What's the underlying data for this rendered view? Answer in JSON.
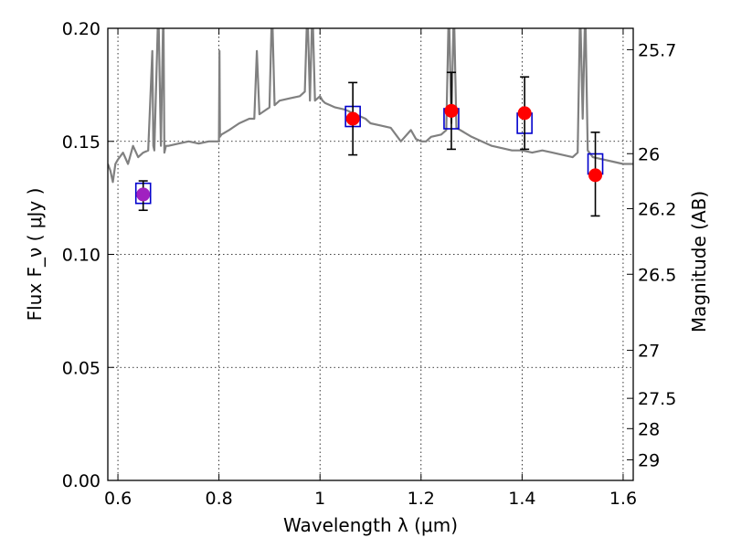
{
  "chart_data": {
    "type": "scatter",
    "xlabel": "Wavelength  λ (μm)",
    "ylabel": "Flux  F_ν  ( μJy )",
    "y2label": "Magnitude (AB)",
    "xlim": [
      0.58,
      1.62
    ],
    "ylim": [
      0.0,
      0.2
    ],
    "x_ticks": [
      0.6,
      0.8,
      1.0,
      1.2,
      1.4,
      1.6
    ],
    "x_tick_labels": [
      "0.6",
      "0.8",
      "1",
      "1.2",
      "1.4",
      "1.6"
    ],
    "y_ticks": [
      0.0,
      0.05,
      0.1,
      0.15,
      0.2
    ],
    "y_tick_labels": [
      "0.00",
      "0.05",
      "0.10",
      "0.15",
      "0.20"
    ],
    "mag_ticks": [
      25.7,
      26,
      26.2,
      26.5,
      27,
      27.5,
      28,
      29
    ],
    "mag_tick_labels": [
      "25.7",
      "26",
      "26.2",
      "26.5",
      "27",
      "27.5",
      "28",
      "29"
    ],
    "grid": true,
    "observed": {
      "x": [
        0.65,
        1.065,
        1.26,
        1.405,
        1.545
      ],
      "y": [
        0.1265,
        0.16,
        0.1635,
        0.1625,
        0.135
      ],
      "yerr_low": [
        0.007,
        0.016,
        0.017,
        0.016,
        0.018
      ],
      "yerr_high": [
        0.006,
        0.016,
        0.017,
        0.016,
        0.019
      ]
    },
    "model_photometry": {
      "x": [
        0.65,
        1.065,
        1.26,
        1.405,
        1.545
      ],
      "y": [
        0.127,
        0.161,
        0.16,
        0.158,
        0.14
      ]
    },
    "model_spectrum": {
      "x": [
        0.58,
        0.585,
        0.59,
        0.595,
        0.6,
        0.61,
        0.62,
        0.63,
        0.64,
        0.65,
        0.66,
        0.668,
        0.67,
        0.672,
        0.68,
        0.685,
        0.69,
        0.692,
        0.695,
        0.7,
        0.72,
        0.74,
        0.76,
        0.78,
        0.8,
        0.801,
        0.802,
        0.805,
        0.82,
        0.84,
        0.86,
        0.87,
        0.875,
        0.88,
        0.9,
        0.905,
        0.91,
        0.92,
        0.94,
        0.96,
        0.97,
        0.975,
        0.98,
        0.985,
        0.99,
        1.0,
        1.005,
        1.01,
        1.03,
        1.05,
        1.07,
        1.09,
        1.1,
        1.12,
        1.14,
        1.16,
        1.18,
        1.19,
        1.2,
        1.21,
        1.22,
        1.24,
        1.25,
        1.255,
        1.26,
        1.265,
        1.27,
        1.3,
        1.32,
        1.34,
        1.36,
        1.38,
        1.4,
        1.42,
        1.44,
        1.46,
        1.48,
        1.5,
        1.51,
        1.515,
        1.52,
        1.525,
        1.53,
        1.54,
        1.56,
        1.58,
        1.6,
        1.62
      ],
      "y": [
        0.14,
        0.137,
        0.132,
        0.14,
        0.142,
        0.145,
        0.14,
        0.148,
        0.143,
        0.145,
        0.146,
        0.19,
        0.148,
        0.146,
        0.21,
        0.148,
        0.21,
        0.145,
        0.148,
        0.148,
        0.149,
        0.15,
        0.149,
        0.15,
        0.15,
        0.19,
        0.152,
        0.153,
        0.155,
        0.158,
        0.16,
        0.16,
        0.19,
        0.162,
        0.165,
        0.21,
        0.166,
        0.168,
        0.169,
        0.17,
        0.172,
        0.21,
        0.168,
        0.21,
        0.168,
        0.17,
        0.168,
        0.167,
        0.165,
        0.164,
        0.162,
        0.16,
        0.158,
        0.157,
        0.156,
        0.15,
        0.155,
        0.151,
        0.15,
        0.15,
        0.152,
        0.153,
        0.155,
        0.21,
        0.158,
        0.21,
        0.156,
        0.152,
        0.15,
        0.148,
        0.147,
        0.146,
        0.146,
        0.145,
        0.146,
        0.145,
        0.144,
        0.143,
        0.145,
        0.21,
        0.16,
        0.21,
        0.146,
        0.143,
        0.142,
        0.141,
        0.14,
        0.14
      ]
    },
    "colors": {
      "observed": "#ff0000",
      "model_box": "#0000cc",
      "spectrum": "#808080",
      "first_point_fill": "#a020c0"
    }
  }
}
